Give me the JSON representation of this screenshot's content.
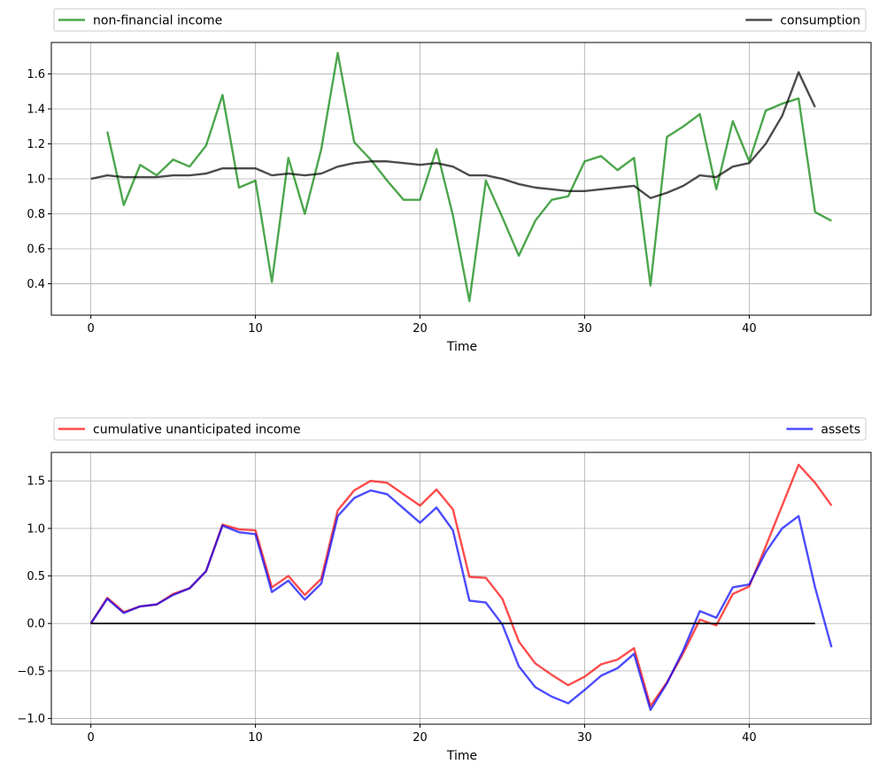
{
  "chart_data": [
    {
      "type": "line",
      "title": "",
      "xlabel": "Time",
      "ylabel": "",
      "xlim": [
        -2.4,
        47.4
      ],
      "ylim": [
        0.22,
        1.78
      ],
      "xticks": [
        0,
        10,
        20,
        30,
        40
      ],
      "yticks": [
        0.4,
        0.6,
        0.8,
        1.0,
        1.2,
        1.4,
        1.6
      ],
      "ytick_labels": [
        "0.4",
        "0.6",
        "0.8",
        "1.0",
        "1.2",
        "1.4",
        "1.6"
      ],
      "grid": true,
      "legend_position": "above-plot",
      "series": [
        {
          "name": "non-financial income",
          "color": "#008000",
          "x": [
            1,
            2,
            3,
            4,
            5,
            6,
            7,
            8,
            9,
            10,
            11,
            12,
            13,
            14,
            15,
            16,
            17,
            18,
            19,
            20,
            21,
            22,
            23,
            24,
            25,
            26,
            27,
            28,
            29,
            30,
            31,
            32,
            33,
            34,
            35,
            36,
            37,
            38,
            39,
            40,
            41,
            42,
            43,
            44,
            45
          ],
          "values": [
            1.27,
            0.85,
            1.08,
            1.02,
            1.11,
            1.07,
            1.19,
            1.48,
            0.95,
            0.99,
            0.41,
            1.12,
            0.8,
            1.17,
            1.72,
            1.21,
            1.11,
            0.99,
            0.88,
            0.88,
            1.17,
            0.79,
            0.3,
            0.99,
            0.78,
            0.56,
            0.76,
            0.88,
            0.9,
            1.1,
            1.13,
            1.05,
            1.12,
            0.39,
            1.24,
            1.3,
            1.37,
            0.94,
            1.33,
            1.1,
            1.39,
            1.43,
            1.46,
            0.81,
            0.76
          ]
        },
        {
          "name": "consumption",
          "color": "#000000",
          "x": [
            0,
            1,
            2,
            3,
            4,
            5,
            6,
            7,
            8,
            9,
            10,
            11,
            12,
            13,
            14,
            15,
            16,
            17,
            18,
            19,
            20,
            21,
            22,
            23,
            24,
            25,
            26,
            27,
            28,
            29,
            30,
            31,
            32,
            33,
            34,
            35,
            36,
            37,
            38,
            39,
            40,
            41,
            42,
            43,
            44
          ],
          "values": [
            1.0,
            1.02,
            1.01,
            1.01,
            1.01,
            1.02,
            1.02,
            1.03,
            1.06,
            1.06,
            1.06,
            1.02,
            1.03,
            1.02,
            1.03,
            1.07,
            1.09,
            1.1,
            1.1,
            1.09,
            1.08,
            1.09,
            1.07,
            1.02,
            1.02,
            1.0,
            0.97,
            0.95,
            0.94,
            0.93,
            0.93,
            0.94,
            0.95,
            0.96,
            0.89,
            0.92,
            0.96,
            1.02,
            1.01,
            1.07,
            1.09,
            1.2,
            1.36,
            1.61,
            1.41
          ]
        }
      ]
    },
    {
      "type": "line",
      "title": "",
      "xlabel": "Time",
      "ylabel": "",
      "xlim": [
        -2.4,
        47.4
      ],
      "ylim": [
        -1.06,
        1.8
      ],
      "xticks": [
        0,
        10,
        20,
        30,
        40
      ],
      "yticks": [
        -1.0,
        -0.5,
        0.0,
        0.5,
        1.0,
        1.5
      ],
      "ytick_labels": [
        "−1.0",
        "−0.5",
        "0.0",
        "0.5",
        "1.0",
        "1.5"
      ],
      "grid": true,
      "legend_position": "above-plot",
      "series": [
        {
          "name": "cumulative unanticipated income",
          "color": "#ff0000",
          "x": [
            0,
            1,
            2,
            3,
            4,
            5,
            6,
            7,
            8,
            9,
            10,
            11,
            12,
            13,
            14,
            15,
            16,
            17,
            18,
            19,
            20,
            21,
            22,
            23,
            24,
            25,
            26,
            27,
            28,
            29,
            30,
            31,
            32,
            33,
            34,
            35,
            36,
            37,
            38,
            39,
            40,
            41,
            42,
            43,
            44,
            45
          ],
          "values": [
            0.0,
            0.27,
            0.12,
            0.18,
            0.2,
            0.31,
            0.37,
            0.55,
            1.04,
            0.99,
            0.98,
            0.38,
            0.5,
            0.3,
            0.47,
            1.19,
            1.4,
            1.5,
            1.48,
            1.36,
            1.24,
            1.41,
            1.2,
            0.49,
            0.48,
            0.26,
            -0.19,
            -0.42,
            -0.54,
            -0.65,
            -0.56,
            -0.43,
            -0.38,
            -0.26,
            -0.87,
            -0.62,
            -0.31,
            0.04,
            -0.02,
            0.31,
            0.39,
            0.81,
            1.24,
            1.67,
            1.48,
            1.24
          ]
        },
        {
          "name": "assets",
          "color": "#0000ff",
          "x": [
            0,
            1,
            2,
            3,
            4,
            5,
            6,
            7,
            8,
            9,
            10,
            11,
            12,
            13,
            14,
            15,
            16,
            17,
            18,
            19,
            20,
            21,
            22,
            23,
            24,
            25,
            26,
            27,
            28,
            29,
            30,
            31,
            32,
            33,
            34,
            35,
            36,
            37,
            38,
            39,
            40,
            41,
            42,
            43,
            44,
            45
          ],
          "values": [
            0.0,
            0.26,
            0.11,
            0.18,
            0.2,
            0.3,
            0.37,
            0.55,
            1.03,
            0.96,
            0.94,
            0.33,
            0.45,
            0.25,
            0.42,
            1.13,
            1.32,
            1.4,
            1.36,
            1.21,
            1.06,
            1.22,
            0.98,
            0.24,
            0.22,
            -0.01,
            -0.45,
            -0.67,
            -0.77,
            -0.84,
            -0.7,
            -0.55,
            -0.47,
            -0.32,
            -0.91,
            -0.63,
            -0.28,
            0.13,
            0.06,
            0.38,
            0.41,
            0.75,
            1.0,
            1.13,
            0.38,
            -0.25
          ]
        },
        {
          "name": "",
          "color": "#000000",
          "x": [
            0,
            44
          ],
          "values": [
            0,
            0
          ]
        }
      ]
    }
  ]
}
